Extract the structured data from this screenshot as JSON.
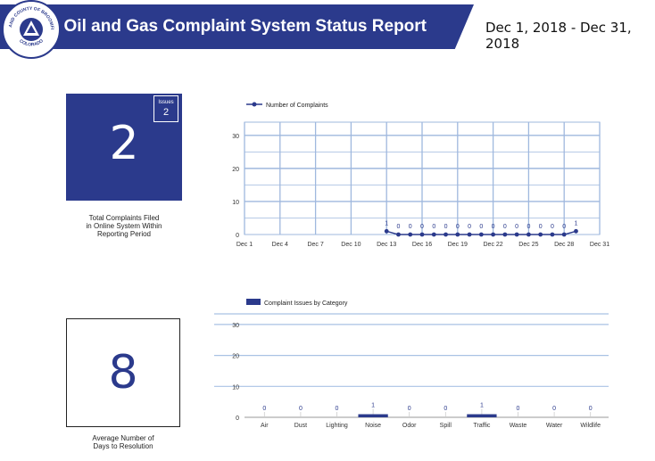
{
  "header": {
    "title": "Oil and Gas Complaint System Status Report",
    "date_range": "Dec 1, 2018 - Dec 31, 2018",
    "logo": {
      "icon": "county-seal-icon",
      "text_top": "CITY AND COUNTY OF BROOMFIELD",
      "text_bottom": "COLORADO"
    }
  },
  "colors": {
    "primary": "#2b3a8c",
    "grid": "#9fb8de",
    "bar_grid": "#a9c2e4"
  },
  "kpis": {
    "total_complaints": {
      "value": "2",
      "caption_lines": [
        "Total Complaints Filed",
        "in Online System Within",
        "Reporting Period"
      ],
      "badge_label": "Issues",
      "badge_value": "2"
    },
    "avg_resolution": {
      "value": "8",
      "caption_lines": [
        "Average Number of",
        "Days to Resolution"
      ]
    }
  },
  "chart_data": [
    {
      "type": "line",
      "legend": "Number of Complaints",
      "legend_position": "top-left",
      "x_ticks": [
        "Dec 1",
        "Dec 4",
        "Dec 7",
        "Dec 10",
        "Dec 13",
        "Dec 16",
        "Dec 19",
        "Dec 22",
        "Dec 25",
        "Dec 28",
        "Dec 31"
      ],
      "x": [
        "Dec 13",
        "Dec 14",
        "Dec 15",
        "Dec 16",
        "Dec 17",
        "Dec 18",
        "Dec 19",
        "Dec 20",
        "Dec 21",
        "Dec 22",
        "Dec 23",
        "Dec 24",
        "Dec 25",
        "Dec 26",
        "Dec 27",
        "Dec 28",
        "Dec 29"
      ],
      "values": [
        1,
        0,
        0,
        0,
        0,
        0,
        0,
        0,
        0,
        0,
        0,
        0,
        0,
        0,
        0,
        0,
        1
      ],
      "y_ticks": [
        0,
        10,
        20,
        30
      ],
      "ylim": [
        0,
        34
      ],
      "grid": true
    },
    {
      "type": "bar",
      "legend": "Complaint Issues by Category",
      "legend_position": "top-left",
      "categories": [
        "Air",
        "Dust",
        "Lighting",
        "Noise",
        "Odor",
        "Spill",
        "Traffic",
        "Waste",
        "Water",
        "Wildlife"
      ],
      "values": [
        0,
        0,
        0,
        1,
        0,
        0,
        1,
        0,
        0,
        0
      ],
      "y_ticks": [
        0,
        10,
        20,
        30
      ],
      "ylim": [
        0,
        34
      ],
      "grid": true
    }
  ]
}
